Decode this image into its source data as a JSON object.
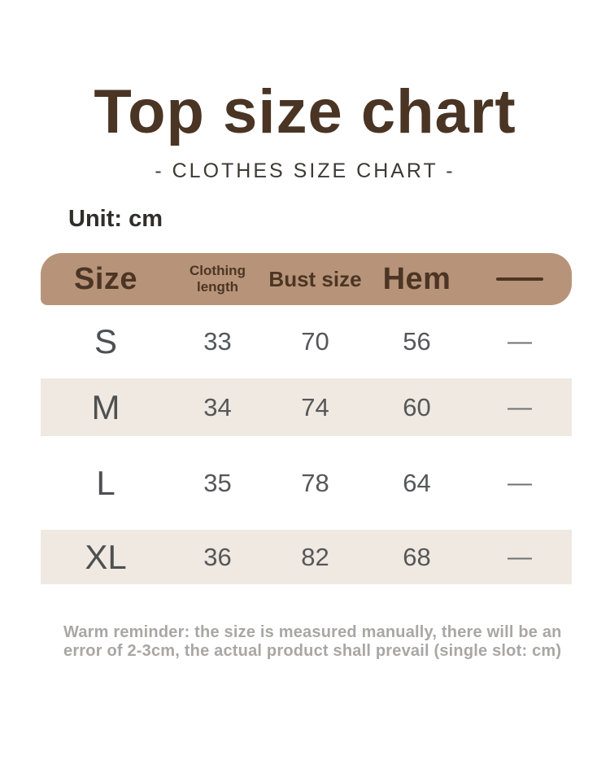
{
  "page": {
    "title": "Top size chart",
    "subtitle": "- CLOTHES SIZE CHART -",
    "unit_label": "Unit: cm",
    "note_line1": "Warm reminder: the size is measured manually, there will be an",
    "note_line2": "error of 2-3cm, the actual product shall prevail (single slot: cm)"
  },
  "colors": {
    "header_bg": "#b79479",
    "header_text": "#4c3524",
    "title_text": "#4a3423",
    "stripe_bg": "#efe9e1",
    "body_text": "#56575a",
    "note_text": "#a9a7a5"
  },
  "table": {
    "header": {
      "size": "Size",
      "length_line1": "Clothing",
      "length_line2": "length",
      "bust": "Bust size",
      "hem": "Hem"
    },
    "rows": [
      {
        "size": "S",
        "length": "33",
        "bust": "70",
        "hem": "56",
        "extra": "—"
      },
      {
        "size": "M",
        "length": "34",
        "bust": "74",
        "hem": "60",
        "extra": "—"
      },
      {
        "size": "L",
        "length": "35",
        "bust": "78",
        "hem": "64",
        "extra": "—"
      },
      {
        "size": "XL",
        "length": "36",
        "bust": "82",
        "hem": "68",
        "extra": "—"
      }
    ]
  },
  "chart_data": {
    "type": "table",
    "title": "Top size chart",
    "unit": "cm",
    "columns": [
      "Size",
      "Clothing length",
      "Bust size",
      "Hem",
      ""
    ],
    "rows": [
      [
        "S",
        33,
        70,
        56,
        null
      ],
      [
        "M",
        34,
        74,
        60,
        null
      ],
      [
        "L",
        35,
        78,
        64,
        null
      ],
      [
        "XL",
        36,
        82,
        68,
        null
      ]
    ]
  }
}
